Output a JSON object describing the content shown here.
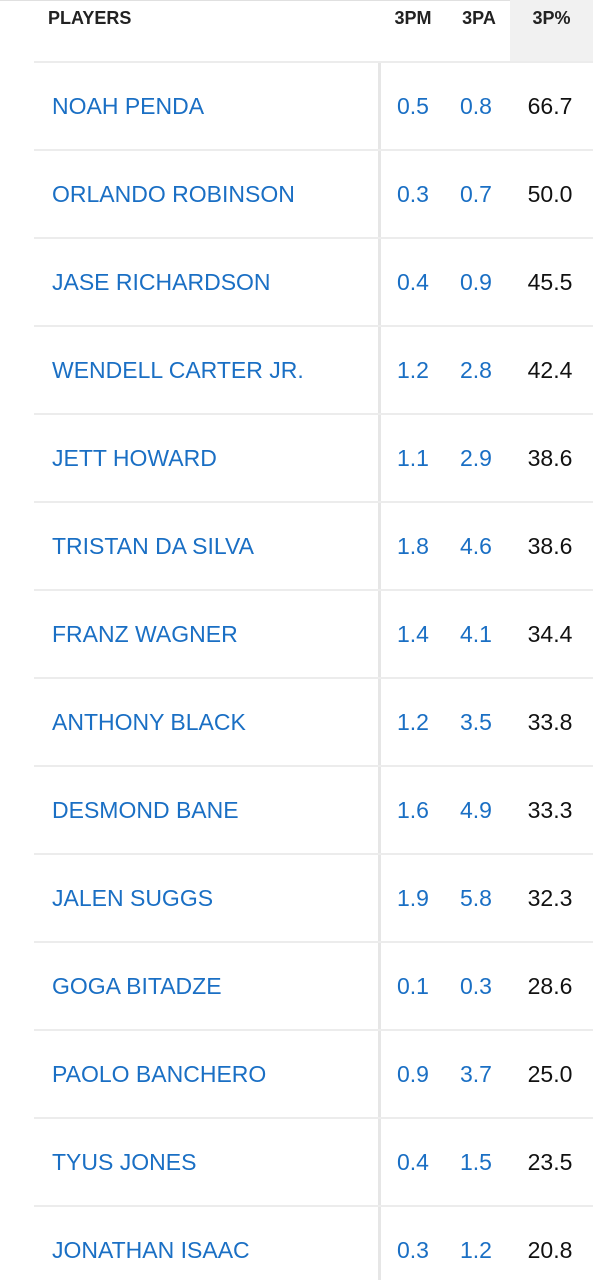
{
  "table": {
    "headers": {
      "player": "PLAYERS",
      "three_pm": "3PM",
      "three_pa": "3PA",
      "three_pct": "3P%"
    },
    "rows": [
      {
        "player": "NOAH PENDA",
        "three_pm": "0.5",
        "three_pa": "0.8",
        "three_pct": "66.7"
      },
      {
        "player": "ORLANDO ROBINSON",
        "three_pm": "0.3",
        "three_pa": "0.7",
        "three_pct": "50.0"
      },
      {
        "player": "JASE RICHARDSON",
        "three_pm": "0.4",
        "three_pa": "0.9",
        "three_pct": "45.5"
      },
      {
        "player": "WENDELL CARTER JR.",
        "three_pm": "1.2",
        "three_pa": "2.8",
        "three_pct": "42.4"
      },
      {
        "player": "JETT HOWARD",
        "three_pm": "1.1",
        "three_pa": "2.9",
        "three_pct": "38.6"
      },
      {
        "player": "TRISTAN DA SILVA",
        "three_pm": "1.8",
        "three_pa": "4.6",
        "three_pct": "38.6"
      },
      {
        "player": "FRANZ WAGNER",
        "three_pm": "1.4",
        "three_pa": "4.1",
        "three_pct": "34.4"
      },
      {
        "player": "ANTHONY BLACK",
        "three_pm": "1.2",
        "three_pa": "3.5",
        "three_pct": "33.8"
      },
      {
        "player": "DESMOND BANE",
        "three_pm": "1.6",
        "three_pa": "4.9",
        "three_pct": "33.3"
      },
      {
        "player": "JALEN SUGGS",
        "three_pm": "1.9",
        "three_pa": "5.8",
        "three_pct": "32.3"
      },
      {
        "player": "GOGA BITADZE",
        "three_pm": "0.1",
        "three_pa": "0.3",
        "three_pct": "28.6"
      },
      {
        "player": "PAOLO BANCHERO",
        "three_pm": "0.9",
        "three_pa": "3.7",
        "three_pct": "25.0"
      },
      {
        "player": "TYUS JONES",
        "three_pm": "0.4",
        "three_pa": "1.5",
        "three_pct": "23.5"
      },
      {
        "player": "JONATHAN ISAAC",
        "three_pm": "0.3",
        "three_pa": "1.2",
        "three_pct": "20.8"
      }
    ]
  },
  "colors": {
    "link_blue": "#1a6fc4",
    "text_dark": "#111111",
    "sorted_column_bg": "#f1f1f1",
    "row_border": "#ececec"
  }
}
